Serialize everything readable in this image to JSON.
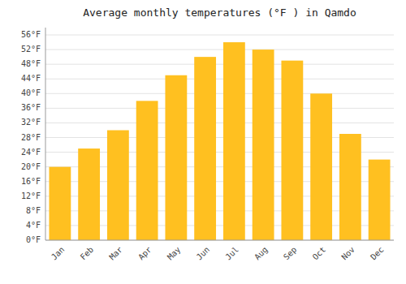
{
  "chart_data": {
    "type": "bar",
    "title": "Average monthly temperatures (°F ) in Qamdo",
    "categories": [
      "Jan",
      "Feb",
      "Mar",
      "Apr",
      "May",
      "Jun",
      "Jul",
      "Aug",
      "Sep",
      "Oct",
      "Nov",
      "Dec"
    ],
    "values": [
      20,
      25,
      30,
      38,
      45,
      50,
      54,
      52,
      49,
      40,
      29,
      22
    ],
    "color": "#FFC020",
    "ylim": [
      0,
      58
    ],
    "yticks": [
      {
        "value": 0,
        "label": "0°F"
      },
      {
        "value": 4,
        "label": "4°F"
      },
      {
        "value": 8,
        "label": "8°F"
      },
      {
        "value": 12,
        "label": "12°F"
      },
      {
        "value": 16,
        "label": "16°F"
      },
      {
        "value": 20,
        "label": "20°F"
      },
      {
        "value": 24,
        "label": "24°F"
      },
      {
        "value": 28,
        "label": "28°F"
      },
      {
        "value": 32,
        "label": "32°F"
      },
      {
        "value": 36,
        "label": "36°F"
      },
      {
        "value": 40,
        "label": "40°F"
      },
      {
        "value": 44,
        "label": "44°F"
      },
      {
        "value": 48,
        "label": "48°F"
      },
      {
        "value": 52,
        "label": "52°F"
      },
      {
        "value": 56,
        "label": "56°F"
      }
    ],
    "grid": true
  }
}
